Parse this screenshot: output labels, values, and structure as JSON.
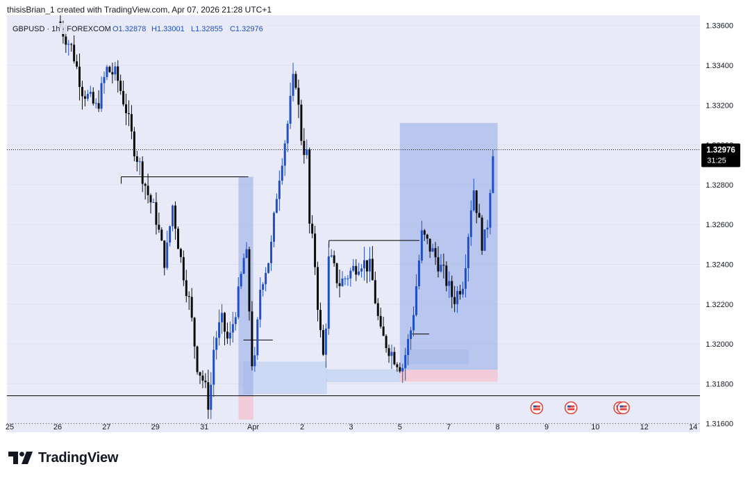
{
  "header": {
    "credit": "thisisBrian_1 created with TradingView.com, Apr 07, 2026 21:28 UTC+1"
  },
  "footer": {
    "brand": "TradingView"
  },
  "colors": {
    "plot_background": "#e8ebf7",
    "up_candle": "#1e4fc7",
    "down_candle": "#0b0b0b",
    "long_zone_fill": "#9aaee6",
    "stop_zone_fill": "#f2c4cf",
    "fvg_fill": "#c8d6f5",
    "axis_text": "#131722",
    "price_label_bg": "#000000",
    "price_label_text": "#ffffff"
  },
  "chart_data": {
    "type": "candlestick",
    "symbol": "GBPUSD",
    "interval": "1h",
    "exchange": "FOREXCOM",
    "legend_symbol": "GBPUSD · 1h · FOREXCOM",
    "ohlc_labels": {
      "open": "O1.32878",
      "high": "H1.33001",
      "low": "L1.32855",
      "close": "C1.32976"
    },
    "current_price": "1.32976",
    "countdown": "31:25",
    "y_axis": {
      "min": 1.3155,
      "max": 1.3362,
      "ticks": [
        1.316,
        1.318,
        1.32,
        1.322,
        1.324,
        1.326,
        1.328,
        1.33,
        1.332,
        1.334,
        1.336
      ],
      "tick_labels": [
        "1.31600",
        "1.31800",
        "1.32000",
        "1.32200",
        "1.32400",
        "1.32600",
        "1.32800",
        "1.33000",
        "1.33200",
        "1.33400",
        "1.33600"
      ]
    },
    "x_axis": {
      "labels": [
        {
          "label": "25",
          "t": -0.1
        },
        {
          "label": "26",
          "t": 1
        },
        {
          "label": "27",
          "t": 2
        },
        {
          "label": "29",
          "t": 3
        },
        {
          "label": "31",
          "t": 4
        },
        {
          "label": "Apr",
          "t": 5
        },
        {
          "label": "2",
          "t": 6
        },
        {
          "label": "3",
          "t": 7
        },
        {
          "label": "5",
          "t": 8
        },
        {
          "label": "7",
          "t": 9
        },
        {
          "label": "8",
          "t": 10
        },
        {
          "label": "9",
          "t": 11
        },
        {
          "label": "10",
          "t": 12
        },
        {
          "label": "12",
          "t": 13
        },
        {
          "label": "14",
          "t": 14
        }
      ]
    },
    "price_path": [
      {
        "t": 1.0,
        "p": 1.3362
      },
      {
        "t": 1.3,
        "p": 1.3348
      },
      {
        "t": 1.5,
        "p": 1.3328
      },
      {
        "t": 1.8,
        "p": 1.3318
      },
      {
        "t": 2.0,
        "p": 1.3338
      },
      {
        "t": 2.2,
        "p": 1.3335
      },
      {
        "t": 2.4,
        "p": 1.3318
      },
      {
        "t": 2.55,
        "p": 1.33
      },
      {
        "t": 2.7,
        "p": 1.3288
      },
      {
        "t": 2.85,
        "p": 1.3275
      },
      {
        "t": 3.0,
        "p": 1.3265
      },
      {
        "t": 3.2,
        "p": 1.324
      },
      {
        "t": 3.35,
        "p": 1.327
      },
      {
        "t": 3.5,
        "p": 1.3245
      },
      {
        "t": 3.7,
        "p": 1.322
      },
      {
        "t": 3.85,
        "p": 1.319
      },
      {
        "t": 4.0,
        "p": 1.318
      },
      {
        "t": 4.1,
        "p": 1.3168
      },
      {
        "t": 4.2,
        "p": 1.32
      },
      {
        "t": 4.35,
        "p": 1.3212
      },
      {
        "t": 4.5,
        "p": 1.32
      },
      {
        "t": 4.7,
        "p": 1.3225
      },
      {
        "t": 4.85,
        "p": 1.325
      },
      {
        "t": 5.0,
        "p": 1.318
      },
      {
        "t": 5.15,
        "p": 1.323
      },
      {
        "t": 5.35,
        "p": 1.3245
      },
      {
        "t": 5.5,
        "p": 1.328
      },
      {
        "t": 5.7,
        "p": 1.331
      },
      {
        "t": 5.85,
        "p": 1.3338
      },
      {
        "t": 6.0,
        "p": 1.33
      },
      {
        "t": 6.1,
        "p": 1.3295
      },
      {
        "t": 6.15,
        "p": 1.326
      },
      {
        "t": 6.25,
        "p": 1.3245
      },
      {
        "t": 6.35,
        "p": 1.321
      },
      {
        "t": 6.45,
        "p": 1.319
      },
      {
        "t": 6.55,
        "p": 1.3245
      },
      {
        "t": 6.75,
        "p": 1.323
      },
      {
        "t": 6.95,
        "p": 1.3235
      },
      {
        "t": 7.2,
        "p": 1.3242
      },
      {
        "t": 7.4,
        "p": 1.3238
      },
      {
        "t": 7.6,
        "p": 1.3205
      },
      {
        "t": 7.9,
        "p": 1.3193
      },
      {
        "t": 8.05,
        "p": 1.3188
      },
      {
        "t": 8.25,
        "p": 1.321
      },
      {
        "t": 8.45,
        "p": 1.3255
      },
      {
        "t": 8.7,
        "p": 1.3245
      },
      {
        "t": 8.9,
        "p": 1.3235
      },
      {
        "t": 9.1,
        "p": 1.3222
      },
      {
        "t": 9.3,
        "p": 1.3232
      },
      {
        "t": 9.5,
        "p": 1.328
      },
      {
        "t": 9.7,
        "p": 1.3248
      },
      {
        "t": 9.8,
        "p": 1.3262
      },
      {
        "t": 9.9,
        "p": 1.3298
      }
    ],
    "annotations": {
      "horizontal_line_price": 1.3174,
      "dotted_low_price": 1.316,
      "current_price_line": 1.32976,
      "resistance_lines": [
        {
          "t1": 2.3,
          "t2": 4.9,
          "price": 1.3284
        },
        {
          "t1": 6.55,
          "t2": 8.4,
          "price": 1.3252
        }
      ],
      "small_lines": [
        {
          "t1": 4.8,
          "t2": 5.4,
          "price": 1.3202
        },
        {
          "t1": 8.25,
          "t2": 8.6,
          "price": 1.3205
        }
      ],
      "long_positions": [
        {
          "t1": 4.7,
          "t2": 5.0,
          "entry": 1.3174,
          "target": 1.3284,
          "stop": 1.3162
        },
        {
          "t1": 8.0,
          "t2": 10.0,
          "entry": 1.3187,
          "target": 1.3311,
          "stop": 1.3181
        }
      ],
      "fvg_zones": [
        {
          "t1": 4.8,
          "t2": 6.5,
          "top": 1.3191,
          "bottom": 1.3175
        },
        {
          "t1": 6.5,
          "t2": 8.0,
          "top": 1.3187,
          "bottom": 1.3181
        },
        {
          "t1": 8.1,
          "t2": 9.4,
          "top": 1.3197,
          "bottom": 1.319
        }
      ],
      "event_markers": [
        {
          "t": 10.8,
          "count": 1
        },
        {
          "t": 11.5,
          "count": 1
        },
        {
          "t": 12.5,
          "count": 2
        }
      ]
    }
  }
}
